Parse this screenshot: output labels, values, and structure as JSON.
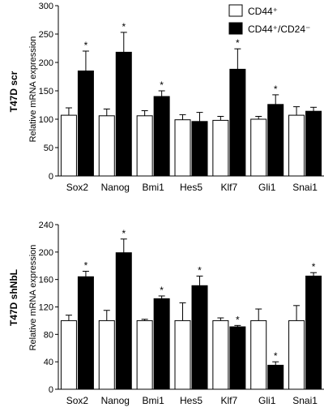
{
  "chart_data": [
    {
      "type": "bar",
      "panel_label": "T47D scr",
      "ylabel": "Relative mRNA expression",
      "ylim": [
        0,
        300
      ],
      "yticks": [
        0,
        50,
        100,
        150,
        200,
        250,
        300
      ],
      "ytick_labels": [
        "0",
        "50",
        "100",
        "150",
        "200",
        "250",
        "300"
      ],
      "categories": [
        "Sox2",
        "Nanog",
        "Bmi1",
        "Hes5",
        "Klf7",
        "Gli1",
        "Snai1"
      ],
      "series": [
        {
          "name": "CD44⁺",
          "color": "#ffffff",
          "values": [
            107,
            106,
            106,
            99,
            98,
            100,
            107
          ],
          "errors": [
            13,
            12,
            9,
            9,
            7,
            5,
            15
          ]
        },
        {
          "name": "CD44⁺/CD24⁻",
          "color": "#000000",
          "values": [
            185,
            218,
            140,
            96,
            188,
            126,
            114
          ],
          "errors": [
            35,
            35,
            10,
            16,
            36,
            17,
            7
          ]
        }
      ],
      "significance": [
        true,
        true,
        true,
        false,
        true,
        true,
        false
      ],
      "marker": "*",
      "legend": "top-right"
    },
    {
      "type": "bar",
      "panel_label": "T47D shNbL",
      "ylabel": "Relative mRNA expression",
      "ylim": [
        0,
        240
      ],
      "yticks": [
        0,
        40,
        80,
        120,
        160,
        200,
        240
      ],
      "ytick_labels": [
        "0",
        "40",
        "80",
        "120",
        "160",
        "200",
        "240"
      ],
      "categories": [
        "Sox2",
        "Nanog",
        "Bmi1",
        "Hes5",
        "Klf7",
        "Gli1",
        "Snai1"
      ],
      "series": [
        {
          "name": "CD44⁺",
          "color": "#ffffff",
          "values": [
            100,
            100,
            100,
            100,
            100,
            100,
            100
          ],
          "errors": [
            8,
            15,
            2,
            26,
            4,
            17,
            22
          ]
        },
        {
          "name": "CD44⁺/CD24⁻",
          "color": "#000000",
          "values": [
            164,
            199,
            132,
            151,
            91,
            35,
            165
          ],
          "errors": [
            8,
            20,
            4,
            14,
            2,
            5,
            5
          ]
        }
      ],
      "significance": [
        true,
        true,
        true,
        true,
        true,
        true,
        true
      ],
      "marker": "*"
    }
  ]
}
